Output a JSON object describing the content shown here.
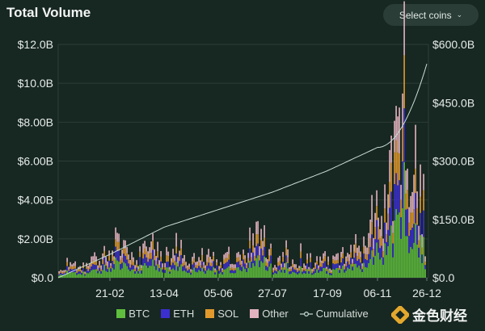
{
  "header": {
    "title": "Total Volume",
    "select_label": "Select coins",
    "select_icon": "chevron-down-icon"
  },
  "colors": {
    "btc": "#5fbe3e",
    "eth": "#3b2fd0",
    "sol": "#e39a2d",
    "other": "#e4b3c0",
    "cumulative": "#c9ddd6",
    "background": "#172721",
    "grid": "#2c3d37"
  },
  "watermark": {
    "text": "金色财经"
  },
  "chart_data": {
    "type": "bar",
    "stacked": true,
    "title": "Total Volume",
    "y_left": {
      "ticks": [
        "$0.0",
        "$2.00B",
        "$4.00B",
        "$6.00B",
        "$8.00B",
        "$10.0B",
        "$12.0B"
      ],
      "range": [
        0,
        12000000000
      ]
    },
    "y_right": {
      "ticks": [
        "$0.0",
        "$150.0B",
        "$300.0B",
        "$450.0B",
        "$600.0B"
      ],
      "range": [
        0,
        600000000000
      ]
    },
    "x_ticks": [
      "21-02",
      "13-04",
      "05-06",
      "27-07",
      "17-09",
      "06-11",
      "26-12"
    ],
    "grid": true,
    "legend_position": "bottom",
    "legend": [
      "BTC",
      "ETH",
      "SOL",
      "Other",
      "Cumulative"
    ],
    "series": [
      {
        "name": "BTC",
        "color": "#5fbe3e"
      },
      {
        "name": "ETH",
        "color": "#3b2fd0"
      },
      {
        "name": "SOL",
        "color": "#e39a2d"
      },
      {
        "name": "Other",
        "color": "#e4b3c0"
      },
      {
        "name": "Cumulative",
        "color": "#c9ddd6",
        "axis": "right"
      }
    ],
    "total_bars_by_segment": [
      {
        "from": "start",
        "to": "21-02",
        "approx_total_B": [
          0.5,
          1.2,
          0.8,
          1.6,
          2.2
        ]
      },
      {
        "from": "21-02",
        "to": "13-04",
        "approx_total_B": [
          1.2,
          3.5,
          1.0,
          2.6,
          1.8
        ]
      },
      {
        "from": "13-04",
        "to": "05-06",
        "approx_total_B": [
          1.0,
          2.4,
          1.2,
          1.6,
          1.3
        ]
      },
      {
        "from": "05-06",
        "to": "27-07",
        "approx_total_B": [
          1.3,
          1.6,
          1.9,
          4.1,
          1.4
        ]
      },
      {
        "from": "27-07",
        "to": "17-09",
        "approx_total_B": [
          1.1,
          1.5,
          1.3,
          1.2,
          1.4
        ]
      },
      {
        "from": "17-09",
        "to": "06-11",
        "approx_total_B": [
          1.0,
          1.4,
          2.0,
          1.6,
          5.3
        ]
      },
      {
        "from": "06-11",
        "to": "26-12",
        "approx_total_B": [
          4.0,
          7.0,
          11.5,
          9.0,
          3.0
        ]
      }
    ],
    "cumulative_points_B": [
      {
        "x": "start",
        "y": 0
      },
      {
        "x": "21-02",
        "y": 60
      },
      {
        "x": "13-04",
        "y": 130
      },
      {
        "x": "05-06",
        "y": 175
      },
      {
        "x": "27-07",
        "y": 220
      },
      {
        "x": "17-09",
        "y": 275
      },
      {
        "x": "06-11",
        "y": 335
      },
      {
        "x": "26-12",
        "y": 550
      }
    ]
  }
}
